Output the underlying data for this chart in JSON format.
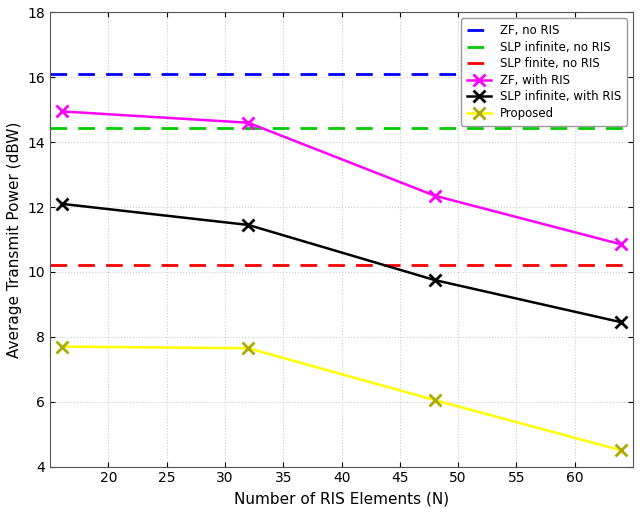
{
  "x_values": [
    16,
    32,
    48,
    64
  ],
  "zf_no_ris_y": 16.1,
  "slp_inf_no_ris_y": 14.45,
  "slp_fin_no_ris_y": 10.2,
  "zf_with_ris": [
    14.95,
    14.6,
    12.35,
    10.85
  ],
  "slp_inf_with_ris": [
    12.1,
    11.45,
    9.75,
    8.45
  ],
  "proposed": [
    7.7,
    7.65,
    6.05,
    4.5
  ],
  "xlim": [
    15,
    65
  ],
  "ylim": [
    4,
    18
  ],
  "xticks": [
    20,
    25,
    30,
    35,
    40,
    45,
    50,
    55,
    60
  ],
  "yticks": [
    4,
    6,
    8,
    10,
    12,
    14,
    16,
    18
  ],
  "xlabel": "Number of RIS Elements (N)",
  "ylabel": "Average Transmit Power (dBW)",
  "colors": {
    "zf_no_ris": "#0000FF",
    "slp_inf_no_ris": "#00CC00",
    "slp_fin_no_ris": "#FF0000",
    "zf_with_ris": "#FF00FF",
    "slp_inf_with_ris": "#000000",
    "proposed": "#FFFF00"
  },
  "legend_labels": [
    "ZF, no RIS",
    "SLP infinite, no RIS",
    "SLP finite, no RIS",
    "ZF, with RIS",
    "SLP infinite, with RIS",
    "Proposed"
  ],
  "grid_color": "#CCCCCC",
  "background_color": "#FFFFFF"
}
